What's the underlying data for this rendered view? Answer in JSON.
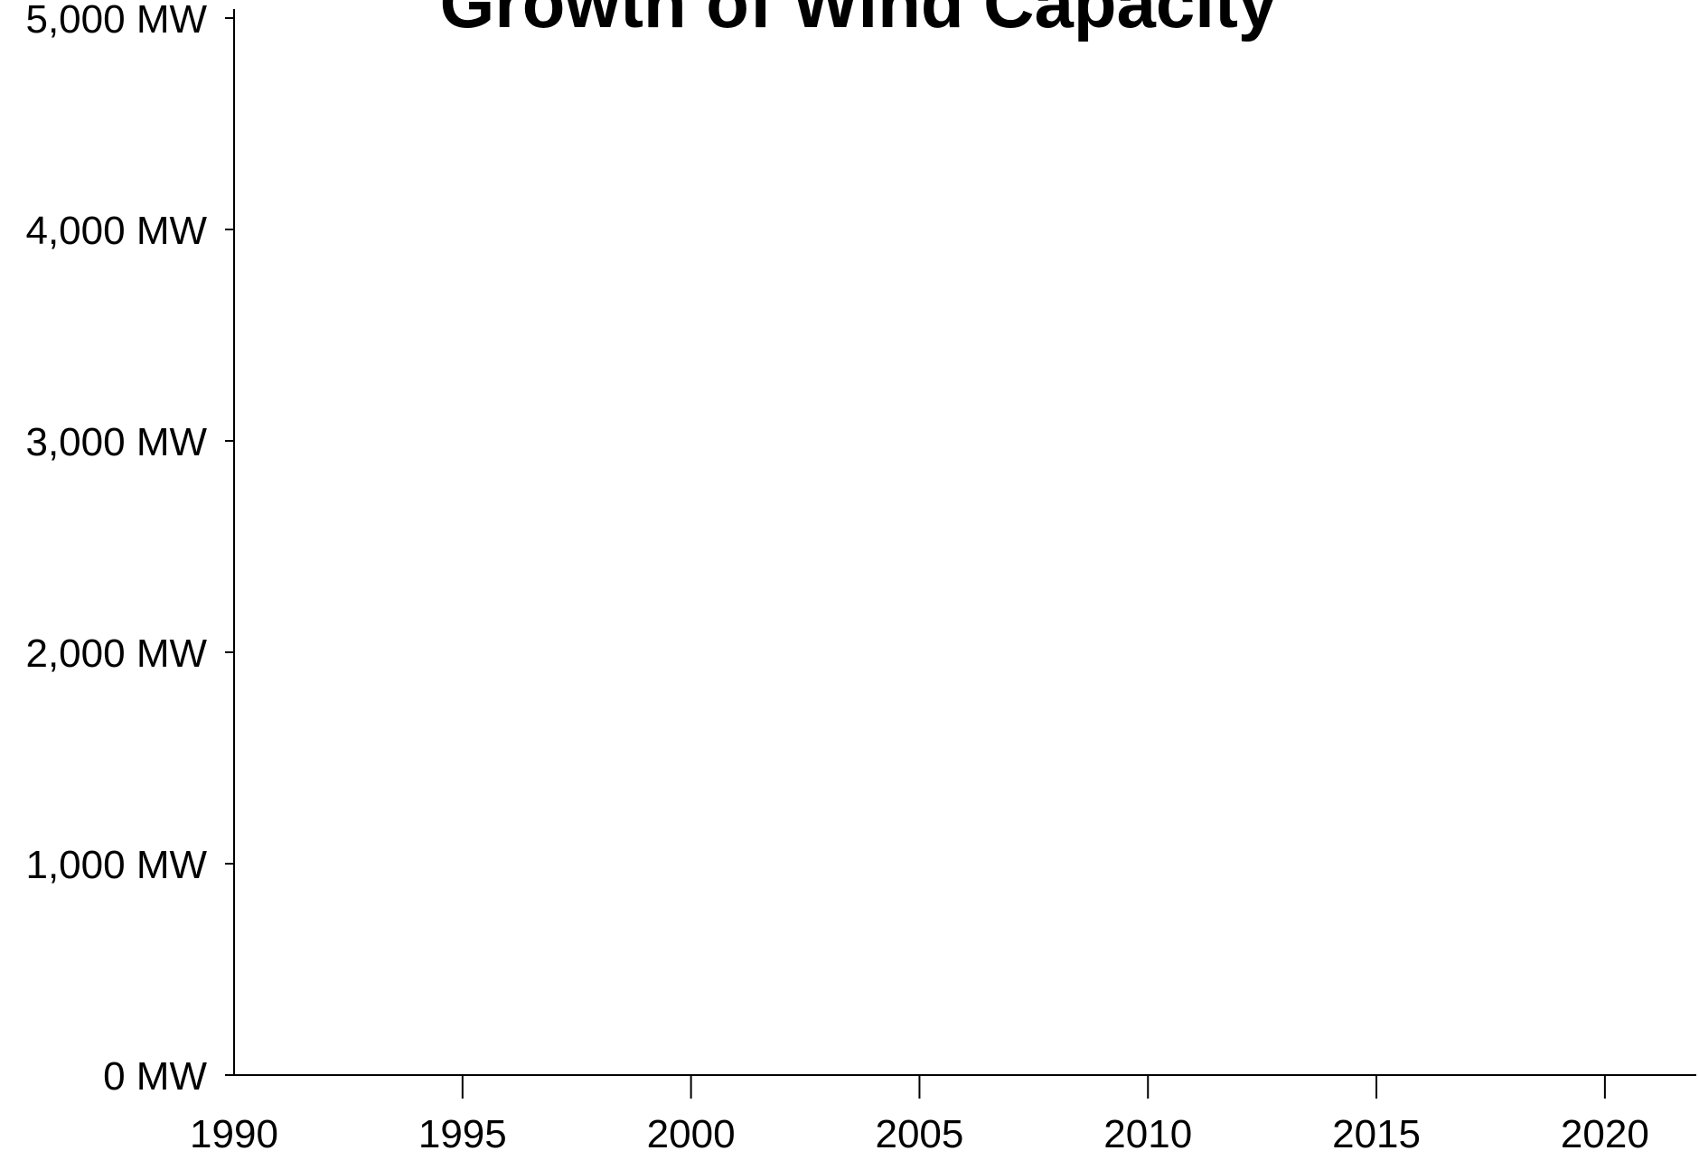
{
  "chart_data": {
    "type": "line",
    "title": "Growth of Wind Capacity",
    "xlabel": "",
    "ylabel": "",
    "xlim": [
      1990,
      2022
    ],
    "ylim": [
      0,
      5000
    ],
    "x_ticks": [
      1990,
      1995,
      2000,
      2005,
      2010,
      2015,
      2020
    ],
    "x_tick_labels": [
      "1990",
      "1995",
      "2000",
      "2005",
      "2010",
      "2015",
      "2020"
    ],
    "y_ticks": [
      0,
      1000,
      2000,
      3000,
      4000,
      5000
    ],
    "y_tick_labels": [
      "0 MW",
      "1,000 MW",
      "2,000 MW",
      "3,000 MW",
      "4,000 MW",
      "5,000 MW"
    ],
    "grid": false,
    "series": []
  }
}
